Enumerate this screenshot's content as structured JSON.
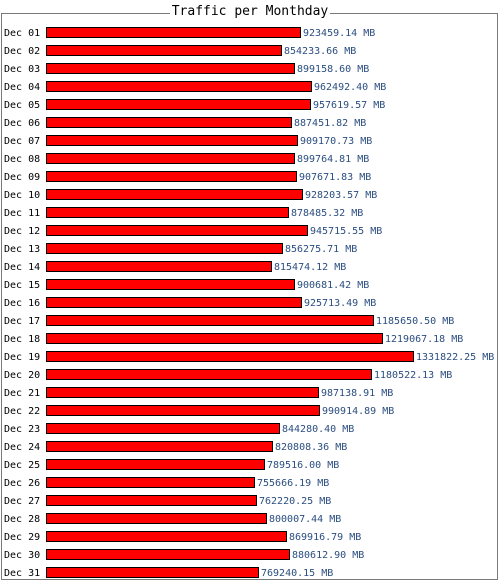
{
  "chart_data": {
    "type": "bar",
    "orientation": "horizontal",
    "title": "Traffic per Monthday",
    "bar_color": "#ff0000",
    "bar_border_color": "#000000",
    "label_color": "#2a4d80",
    "unit": "MB",
    "categories": [
      "Dec 01",
      "Dec 02",
      "Dec 03",
      "Dec 04",
      "Dec 05",
      "Dec 06",
      "Dec 07",
      "Dec 08",
      "Dec 09",
      "Dec 10",
      "Dec 11",
      "Dec 12",
      "Dec 13",
      "Dec 14",
      "Dec 15",
      "Dec 16",
      "Dec 17",
      "Dec 18",
      "Dec 19",
      "Dec 20",
      "Dec 21",
      "Dec 22",
      "Dec 23",
      "Dec 24",
      "Dec 25",
      "Dec 26",
      "Dec 27",
      "Dec 28",
      "Dec 29",
      "Dec 30",
      "Dec 31"
    ],
    "values": [
      923459.14,
      854233.66,
      899158.6,
      962492.4,
      957619.57,
      887451.82,
      909170.73,
      899764.81,
      907671.83,
      928203.57,
      878485.32,
      945715.55,
      856275.71,
      815474.12,
      900681.42,
      925713.49,
      1185650.5,
      1219067.18,
      1331822.25,
      1180522.13,
      987138.91,
      990914.89,
      844280.4,
      820808.36,
      789516.0,
      755666.19,
      762220.25,
      800007.44,
      869916.79,
      880612.9,
      769240.15
    ],
    "value_labels": [
      "923459.14 MB",
      "854233.66 MB",
      "899158.60 MB",
      "962492.40 MB",
      "957619.57 MB",
      "887451.82 MB",
      "909170.73 MB",
      "899764.81 MB",
      "907671.83 MB",
      "928203.57 MB",
      "878485.32 MB",
      "945715.55 MB",
      "856275.71 MB",
      "815474.12 MB",
      "900681.42 MB",
      "925713.49 MB",
      "1185650.50 MB",
      "1219067.18 MB",
      "1331822.25 MB",
      "1180522.13 MB",
      "987138.91 MB",
      "990914.89 MB",
      "844280.40 MB",
      "820808.36 MB",
      "789516.00 MB",
      "755666.19 MB",
      "762220.25 MB",
      "800007.44 MB",
      "869916.79 MB",
      "880612.90 MB",
      "769240.15 MB"
    ]
  }
}
